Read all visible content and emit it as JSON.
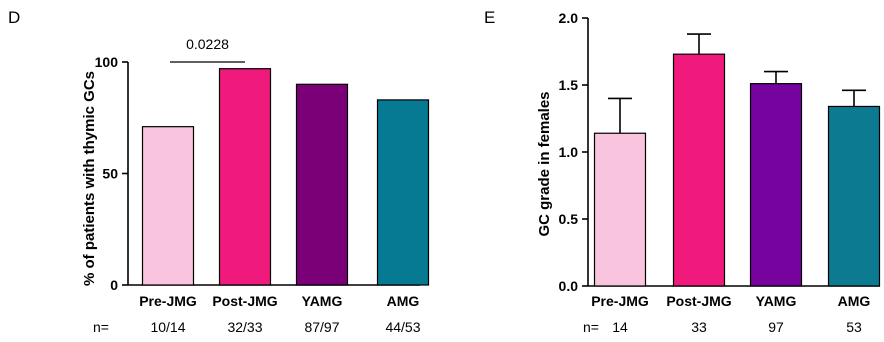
{
  "n_prefix": "n=",
  "chart_data": [
    {
      "panel": "D",
      "type": "bar",
      "categories": [
        "Pre-JMG",
        "Post-JMG",
        "YAMG",
        "AMG"
      ],
      "values": [
        71,
        97,
        90,
        83
      ],
      "colors": [
        "#f9c4de",
        "#f0197c",
        "#7b0078",
        "#077a93"
      ],
      "ylabel": "% of patients with thymic GCs",
      "ylim": [
        0,
        100
      ],
      "yticks": [
        "0",
        "50",
        "100"
      ],
      "n_labels": [
        "10/14",
        "32/33",
        "87/97",
        "44/53"
      ],
      "annotation": {
        "text": "0.0228",
        "between": [
          "Pre-JMG",
          "Post-JMG"
        ]
      },
      "grid": false
    },
    {
      "panel": "E",
      "type": "bar",
      "categories": [
        "Pre-JMG",
        "Post-JMG",
        "YAMG",
        "AMG"
      ],
      "values": [
        1.14,
        1.73,
        1.51,
        1.34
      ],
      "errors": [
        0.26,
        0.15,
        0.09,
        0.12
      ],
      "colors": [
        "#f9c4de",
        "#f0197c",
        "#77039e",
        "#0c7a91"
      ],
      "ylabel": "GC grade in females",
      "ylim": [
        0,
        2.0
      ],
      "yticks": [
        "0.0",
        "0.5",
        "1.0",
        "1.5",
        "2.0"
      ],
      "n_labels": [
        "14",
        "33",
        "97",
        "53"
      ],
      "grid": false
    }
  ]
}
